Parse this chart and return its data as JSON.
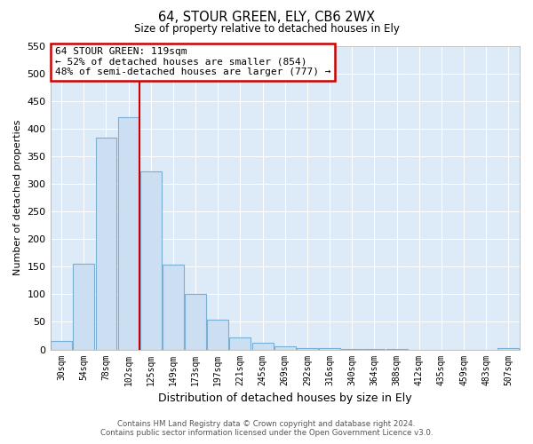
{
  "title": "64, STOUR GREEN, ELY, CB6 2WX",
  "subtitle": "Size of property relative to detached houses in Ely",
  "xlabel": "Distribution of detached houses by size in Ely",
  "ylabel": "Number of detached properties",
  "bar_labels": [
    "30sqm",
    "54sqm",
    "78sqm",
    "102sqm",
    "125sqm",
    "149sqm",
    "173sqm",
    "197sqm",
    "221sqm",
    "245sqm",
    "269sqm",
    "292sqm",
    "316sqm",
    "340sqm",
    "364sqm",
    "388sqm",
    "412sqm",
    "435sqm",
    "459sqm",
    "483sqm",
    "507sqm"
  ],
  "bar_values": [
    15,
    155,
    383,
    420,
    323,
    153,
    100,
    54,
    22,
    12,
    5,
    2,
    2,
    1,
    1,
    1,
    0,
    0,
    0,
    0,
    3
  ],
  "bar_color": "#ccdff2",
  "bar_edge_color": "#7aafd4",
  "vline_x": 3.5,
  "vline_color": "#cc0000",
  "ylim": [
    0,
    550
  ],
  "yticks": [
    0,
    50,
    100,
    150,
    200,
    250,
    300,
    350,
    400,
    450,
    500,
    550
  ],
  "annotation_title": "64 STOUR GREEN: 119sqm",
  "annotation_line1": "← 52% of detached houses are smaller (854)",
  "annotation_line2": "48% of semi-detached houses are larger (777) →",
  "annotation_box_color": "white",
  "annotation_box_edge_color": "#cc0000",
  "footer_line1": "Contains HM Land Registry data © Crown copyright and database right 2024.",
  "footer_line2": "Contains public sector information licensed under the Open Government Licence v3.0.",
  "plot_bg_color": "#ddeaf7",
  "background_color": "white",
  "grid_color": "#ffffff"
}
